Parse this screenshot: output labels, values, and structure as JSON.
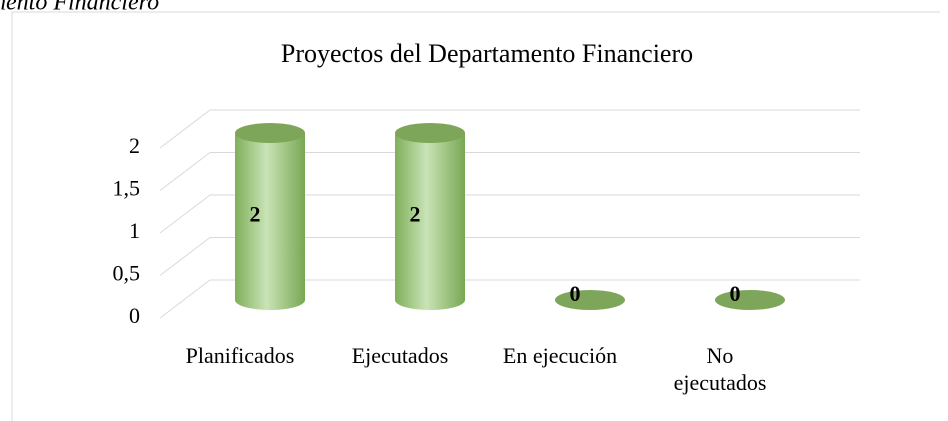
{
  "caption": "nento Financiero",
  "chart_data": {
    "type": "bar",
    "title": "Proyectos del Departamento Financiero",
    "categories": [
      "Planificados",
      "Ejecutados",
      "En ejecución",
      "No ejecutados"
    ],
    "values": [
      2,
      2,
      0,
      0
    ],
    "color": "#a9d18e",
    "ylim": [
      0,
      2
    ],
    "yticks": [
      0,
      {
        "value": 0.5,
        "label": "0,5"
      },
      1,
      {
        "value": 1.5,
        "label": "1,5"
      },
      2
    ],
    "grid": true
  }
}
